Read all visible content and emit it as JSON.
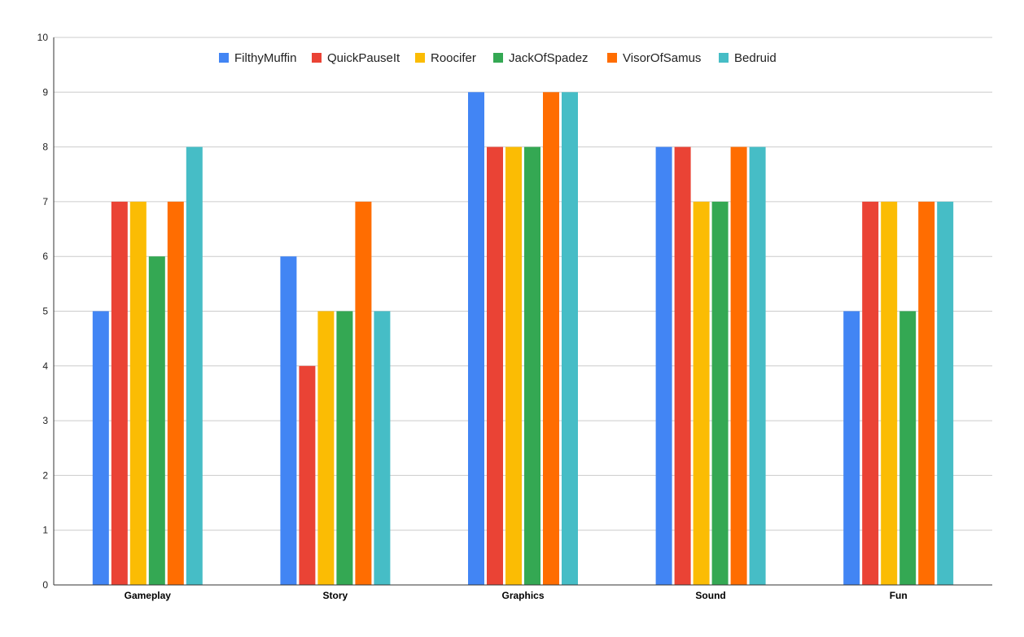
{
  "chart_data": {
    "type": "bar",
    "title": "",
    "xlabel": "",
    "ylabel": "",
    "ylim": [
      0,
      10
    ],
    "yticks": [
      "0",
      "1",
      "2",
      "3",
      "4",
      "5",
      "6",
      "7",
      "8",
      "9",
      "10"
    ],
    "categories": [
      "Gameplay",
      "Story",
      "Graphics",
      "Sound",
      "Fun"
    ],
    "series": [
      {
        "name": "FilthyMuffin",
        "color": "#4285f4",
        "values": [
          5,
          6,
          9,
          8,
          5
        ]
      },
      {
        "name": "QuickPauseIt",
        "color": "#ea4335",
        "values": [
          7,
          4,
          8,
          8,
          7
        ]
      },
      {
        "name": "Roocifer",
        "color": "#fbbc04",
        "values": [
          7,
          5,
          8,
          7,
          7
        ]
      },
      {
        "name": "JackOfSpadez",
        "color": "#34a853",
        "values": [
          6,
          5,
          8,
          7,
          5
        ]
      },
      {
        "name": "VisorOfSamus",
        "color": "#ff6d01",
        "values": [
          7,
          7,
          9,
          8,
          7
        ]
      },
      {
        "name": "Bedruid",
        "color": "#46bdc6",
        "values": [
          8,
          5,
          9,
          8,
          7
        ]
      }
    ],
    "grid": true,
    "legend_position": "top"
  }
}
